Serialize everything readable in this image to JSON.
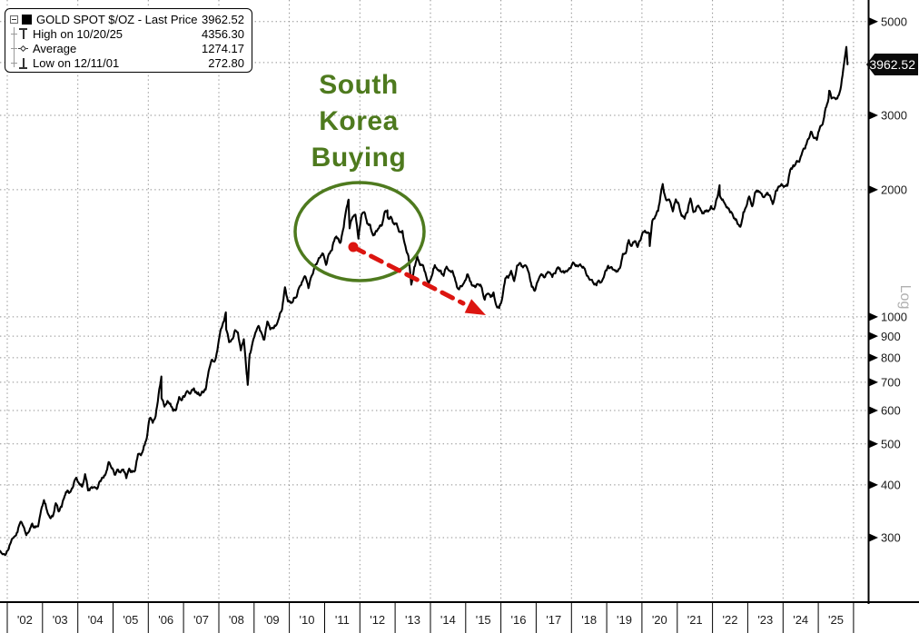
{
  "legend": {
    "series_label": "GOLD SPOT $/OZ - Last Price",
    "last_price": "3962.52",
    "rows": [
      {
        "icon": "high-marker",
        "label": "High on 10/20/25",
        "value": "4356.30"
      },
      {
        "icon": "average-marker",
        "label": "Average",
        "value": "1274.17"
      },
      {
        "icon": "low-marker",
        "label": "Low on 12/11/01",
        "value": "272.80"
      }
    ]
  },
  "annotation": {
    "lines": [
      "South",
      "Korea",
      "Buying"
    ]
  },
  "axis": {
    "last_price_tag": "3962.52",
    "scale_label": "Log"
  },
  "colors": {
    "line": "#000000",
    "grid": "#8f8f8f",
    "axis": "#000000",
    "tick_text": "#1a1a1a",
    "annotation_green": "#4e7a1e",
    "arrow_red": "#dc1510",
    "tag_bg": "#0a0a0a",
    "tag_text": "#ffffff",
    "log_label": "#b0b0b0"
  },
  "chart_data": {
    "type": "line",
    "title": "GOLD SPOT $/OZ - Last Price",
    "x_axis": {
      "start_year": 2002,
      "end_year": 2026,
      "tick_labels": [
        "'02",
        "'03",
        "'04",
        "'05",
        "'06",
        "'07",
        "'08",
        "'09",
        "'10",
        "'11",
        "'12",
        "'13",
        "'14",
        "'15",
        "'16",
        "'17",
        "'18",
        "'19",
        "'20",
        "'21",
        "'22",
        "'23",
        "'24",
        "'25"
      ],
      "gridline_years": [
        2002,
        2004,
        2006,
        2008,
        2010,
        2012,
        2014,
        2016,
        2018,
        2020,
        2022,
        2024,
        2026
      ]
    },
    "y_axis": {
      "scale": "log",
      "side": "right",
      "scale_label": "Log",
      "tick_values": [
        300,
        400,
        500,
        600,
        700,
        800,
        900,
        1000,
        2000,
        3000,
        5000
      ],
      "gridline_values": [
        300,
        400,
        500,
        600,
        700,
        800,
        900,
        1000,
        2000,
        3000,
        4000,
        5000
      ],
      "range": [
        270,
        5100
      ]
    },
    "stats": {
      "last_price": 3962.52,
      "high": {
        "date": "10/20/25",
        "value": 4356.3
      },
      "average": 1274.17,
      "low": {
        "date": "12/11/01",
        "value": 272.8
      }
    },
    "series": [
      {
        "name": "GOLD SPOT $/OZ",
        "monthly_by_year": {
          "2002": [
            282,
            297,
            302,
            309,
            327,
            319,
            304,
            311,
            324,
            317,
            319,
            348
          ],
          "2003": [
            368,
            348,
            335,
            337,
            362,
            346,
            355,
            376,
            388,
            385,
            398,
            416
          ],
          "2004": [
            402,
            396,
            424,
            388,
            394,
            395,
            391,
            408,
            416,
            425,
            453,
            438
          ],
          "2005": [
            423,
            435,
            428,
            435,
            415,
            437,
            429,
            433,
            473,
            470,
            495,
            517
          ],
          "2006": [
            575,
            561,
            582,
            654,
            642,
            613,
            632,
            623,
            599,
            604,
            646,
            636
          ],
          "2007": [
            651,
            665,
            662,
            677,
            659,
            651,
            665,
            672,
            743,
            790,
            783,
            834
          ],
          "2008": [
            923,
            971,
            933,
            871,
            885,
            930,
            918,
            833,
            885,
            731,
            816,
            870
          ],
          "2009": [
            919,
            952,
            916,
            883,
            975,
            934,
            939,
            955,
            996,
            1040,
            1175,
            1088
          ],
          "2010": [
            1078,
            1108,
            1116,
            1180,
            1215,
            1244,
            1169,
            1246,
            1307,
            1346,
            1383,
            1410
          ],
          "2011": [
            1327,
            1411,
            1439,
            1535,
            1536,
            1505,
            1628,
            1814,
            1620,
            1722,
            1746,
            1531
          ],
          "2012": [
            1738,
            1770,
            1662,
            1651,
            1558,
            1598,
            1622,
            1648,
            1776,
            1719,
            1726,
            1664
          ],
          "2013": [
            1664,
            1588,
            1598,
            1469,
            1394,
            1192,
            1312,
            1394,
            1326,
            1324,
            1253,
            1202
          ],
          "2014": [
            1251,
            1326,
            1291,
            1288,
            1250,
            1315,
            1285,
            1285,
            1216,
            1164,
            1182,
            1206
          ],
          "2015": [
            1260,
            1214,
            1187,
            1180,
            1191,
            1171,
            1098,
            1135,
            1114,
            1142,
            1061,
            1060
          ],
          "2016": [
            1111,
            1234,
            1237,
            1285,
            1215,
            1322,
            1342,
            1309,
            1322,
            1272,
            1178,
            1152
          ],
          "2017": [
            1212,
            1255,
            1244,
            1266,
            1275,
            1242,
            1267,
            1311,
            1280,
            1271,
            1280,
            1302
          ],
          "2018": [
            1345,
            1318,
            1323,
            1315,
            1301,
            1250,
            1224,
            1202,
            1187,
            1215,
            1222,
            1282
          ],
          "2019": [
            1321,
            1313,
            1292,
            1283,
            1305,
            1409,
            1414,
            1520,
            1472,
            1511,
            1464,
            1517
          ],
          "2020": [
            1589,
            1586,
            1577,
            1687,
            1730,
            1781,
            1976,
            1968,
            1886,
            1879,
            1777,
            1898
          ],
          "2021": [
            1848,
            1734,
            1708,
            1768,
            1907,
            1770,
            1814,
            1814,
            1757,
            1783,
            1775,
            1829
          ],
          "2022": [
            1797,
            1909,
            1937,
            1897,
            1837,
            1807,
            1766,
            1711,
            1661,
            1634,
            1769,
            1824
          ],
          "2023": [
            1928,
            1827,
            1969,
            1990,
            1962,
            1919,
            1965,
            1940,
            1849,
            1983,
            2036,
            2063
          ],
          "2024": [
            2040,
            2044,
            2230,
            2286,
            2327,
            2327,
            2448,
            2503,
            2635,
            2744,
            2651,
            2625
          ],
          "2025": [
            2798,
            2858,
            3124,
            3289,
            3289,
            3303,
            3290,
            3448,
            3859
          ]
        },
        "extra_points": [
          [
            2001.8,
            279
          ],
          [
            2001.94,
            272.8
          ],
          [
            2006.37,
            722
          ],
          [
            2008.2,
            1025
          ],
          [
            2008.82,
            690
          ],
          [
            2011.68,
            1895
          ],
          [
            2012.78,
            1787
          ],
          [
            2015.95,
            1049
          ],
          [
            2020.22,
            1471
          ],
          [
            2020.59,
            2063
          ],
          [
            2022.2,
            2050
          ],
          [
            2025.31,
            3430
          ],
          [
            2025.797,
            4356.3
          ],
          [
            2025.83,
            3962.52
          ]
        ]
      }
    ]
  }
}
